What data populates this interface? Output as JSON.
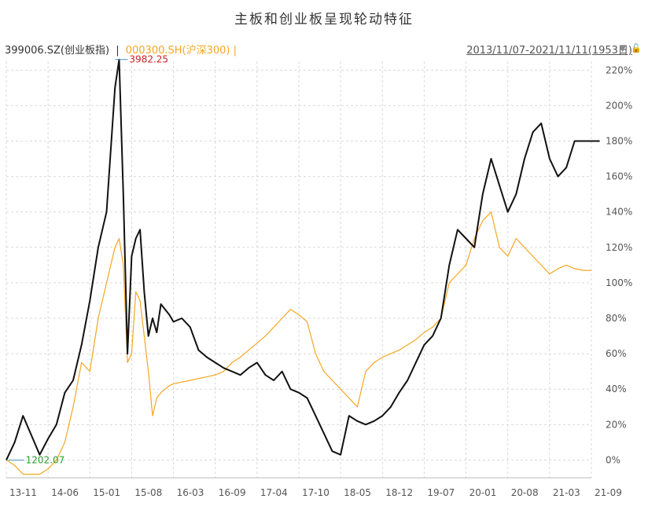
{
  "page": {
    "title": "主板和创业板呈现轮动特征",
    "header_main": "399006.SZ(创业板指)",
    "header_sep": "|",
    "header_compare": "000300.SH(沪深300)",
    "header_compare_sep": "|",
    "date_range": "2013/11/07-2021/11/11(1953日)"
  },
  "colors": {
    "main_series": "#111111",
    "compare_series": "#f5a623",
    "high_label": "#cc2222",
    "low_label": "#2a9d2a",
    "grid": "#d9d9d9"
  },
  "chart_data": {
    "type": "line",
    "title": "主板和创业板呈现轮动特征",
    "xlabel": "",
    "ylabel": "",
    "ylim": [
      -10,
      225
    ],
    "y_ticks": [
      0,
      20,
      40,
      60,
      80,
      100,
      120,
      140,
      160,
      180,
      200,
      220
    ],
    "y_tick_labels": [
      "0%",
      "20%",
      "40%",
      "60%",
      "80%",
      "100%",
      "120%",
      "140%",
      "160%",
      "180%",
      "200%",
      "220%"
    ],
    "x_ticks": [
      "13-11",
      "14-06",
      "15-01",
      "15-08",
      "16-03",
      "16-09",
      "17-04",
      "17-10",
      "18-05",
      "18-12",
      "19-07",
      "20-01",
      "20-08",
      "21-03",
      "21-09"
    ],
    "grid": true,
    "annotations": [
      {
        "text": "3982.25",
        "series": "399006.SZ(创业板指)",
        "x": 2.68,
        "y": 226
      },
      {
        "text": "1202.07",
        "series": "399006.SZ(创业板指)",
        "x": 0.05,
        "y": 0
      }
    ],
    "series": [
      {
        "name": "399006.SZ(创业板指)",
        "x": [
          0,
          0.2,
          0.4,
          0.6,
          0.8,
          1.0,
          1.2,
          1.4,
          1.6,
          1.8,
          2.0,
          2.2,
          2.4,
          2.6,
          2.7,
          2.8,
          2.9,
          3.0,
          3.1,
          3.2,
          3.3,
          3.4,
          3.5,
          3.6,
          3.7,
          3.8,
          3.9,
          4.0,
          4.2,
          4.4,
          4.6,
          4.8,
          5.0,
          5.2,
          5.4,
          5.6,
          5.8,
          6.0,
          6.2,
          6.4,
          6.6,
          6.8,
          7.0,
          7.2,
          7.4,
          7.6,
          7.8,
          8.0,
          8.2,
          8.4,
          8.6,
          8.8,
          9.0,
          9.2,
          9.4,
          9.6,
          9.8,
          10.0,
          10.2,
          10.4,
          10.6,
          10.8,
          11.0,
          11.2,
          11.4,
          11.6,
          11.8,
          12.0,
          12.2,
          12.4,
          12.6,
          12.8,
          13.0,
          13.2,
          13.4,
          13.6,
          13.8,
          14.0,
          14.2
        ],
        "values": [
          0,
          10,
          25,
          14,
          3,
          12,
          20,
          38,
          45,
          65,
          90,
          120,
          140,
          210,
          226,
          150,
          60,
          115,
          125,
          130,
          95,
          70,
          80,
          72,
          88,
          85,
          82,
          78,
          80,
          75,
          62,
          58,
          55,
          52,
          50,
          48,
          52,
          55,
          48,
          45,
          50,
          40,
          38,
          35,
          25,
          15,
          5,
          3,
          25,
          22,
          20,
          22,
          25,
          30,
          38,
          45,
          55,
          65,
          70,
          80,
          110,
          130,
          125,
          120,
          150,
          170,
          155,
          140,
          150,
          170,
          185,
          190,
          170,
          160,
          165,
          180,
          180,
          180,
          180
        ]
      },
      {
        "name": "000300.SH(沪深300)",
        "x": [
          0,
          0.2,
          0.4,
          0.6,
          0.8,
          1.0,
          1.2,
          1.4,
          1.6,
          1.8,
          2.0,
          2.2,
          2.4,
          2.6,
          2.7,
          2.8,
          2.9,
          3.0,
          3.1,
          3.2,
          3.3,
          3.4,
          3.5,
          3.6,
          3.7,
          3.8,
          3.9,
          4.0,
          4.2,
          4.4,
          4.6,
          4.8,
          5.0,
          5.2,
          5.4,
          5.6,
          5.8,
          6.0,
          6.2,
          6.4,
          6.6,
          6.8,
          7.0,
          7.2,
          7.4,
          7.6,
          7.8,
          8.0,
          8.2,
          8.4,
          8.6,
          8.8,
          9.0,
          9.2,
          9.4,
          9.6,
          9.8,
          10.0,
          10.2,
          10.4,
          10.6,
          10.8,
          11.0,
          11.2,
          11.4,
          11.6,
          11.8,
          12.0,
          12.2,
          12.4,
          12.6,
          12.8,
          13.0,
          13.2,
          13.4,
          13.6,
          13.8,
          14.0
        ],
        "values": [
          0,
          -3,
          -8,
          -8,
          -8,
          -5,
          0,
          10,
          30,
          55,
          50,
          80,
          100,
          120,
          125,
          110,
          55,
          60,
          95,
          90,
          70,
          50,
          25,
          35,
          38,
          40,
          42,
          43,
          44,
          45,
          46,
          47,
          48,
          50,
          55,
          58,
          62,
          66,
          70,
          75,
          80,
          85,
          82,
          78,
          60,
          50,
          45,
          40,
          35,
          30,
          50,
          55,
          58,
          60,
          62,
          65,
          68,
          72,
          75,
          80,
          100,
          105,
          110,
          125,
          135,
          140,
          120,
          115,
          125,
          120,
          115,
          110,
          105,
          108,
          110,
          108,
          107,
          107
        ]
      }
    ]
  }
}
